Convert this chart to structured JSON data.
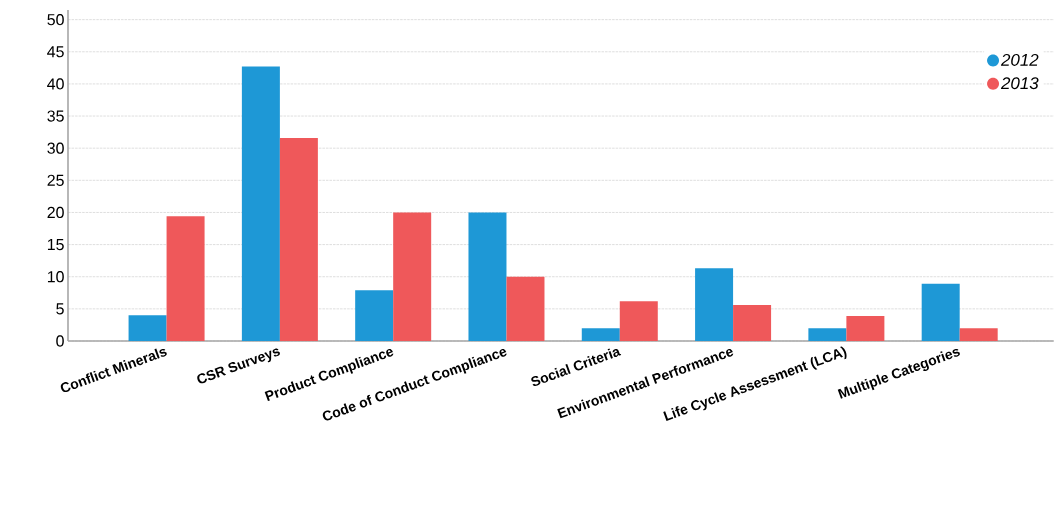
{
  "chart_data": {
    "type": "bar",
    "categories": [
      "Conflict Minerals",
      "CSR Surveys",
      "Product Compliance",
      "Code of Conduct Compliance",
      "Social Criteria",
      "Environmental Performance",
      "Life Cycle Assessment (LCA)",
      "Multiple Categories"
    ],
    "series": [
      {
        "name": "2012",
        "color": "#1e98d6",
        "values": [
          4.0,
          42.7,
          7.9,
          20.0,
          2.0,
          11.3,
          2.0,
          8.9
        ]
      },
      {
        "name": "2013",
        "color": "#ef585a",
        "values": [
          19.4,
          31.6,
          20.0,
          10.0,
          6.2,
          5.6,
          3.9,
          2.0
        ]
      }
    ],
    "ylim": [
      0,
      51.5
    ],
    "yticks": [
      0,
      5,
      10,
      15,
      20,
      25,
      30,
      35,
      40,
      45,
      50
    ],
    "grid": "y",
    "legend": "top right"
  }
}
